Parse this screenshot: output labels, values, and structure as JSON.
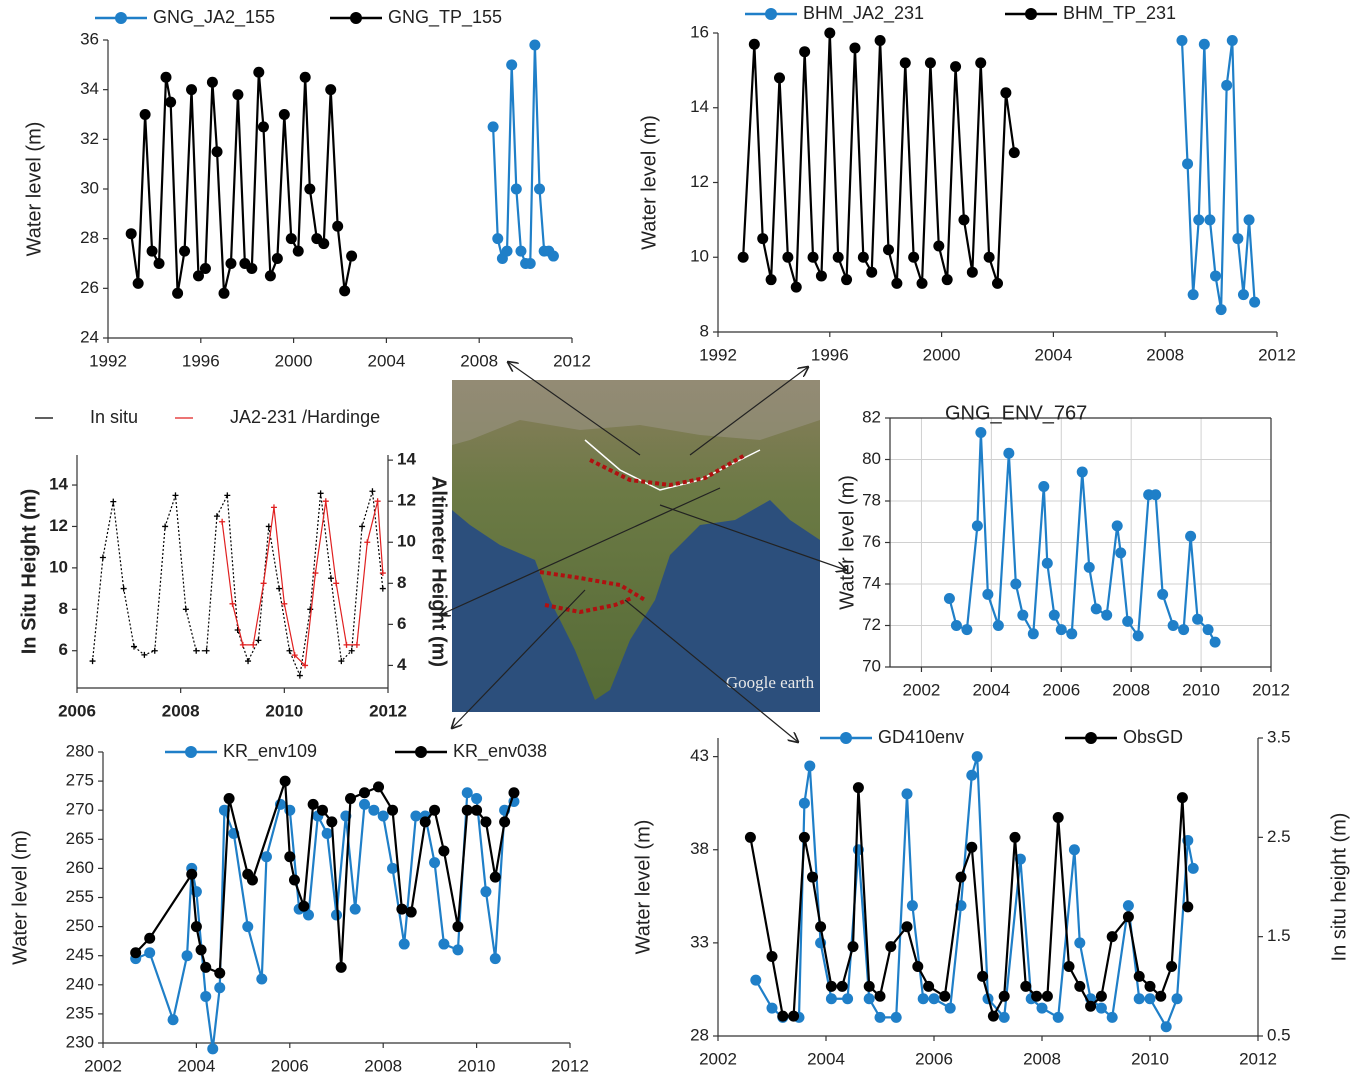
{
  "chart_data": [
    {
      "type": "line",
      "ylabel": "Water level (m)",
      "xlim": [
        1992,
        2012
      ],
      "xticks": [
        1992,
        1996,
        2000,
        2004,
        2008,
        2012
      ],
      "ylim": [
        24,
        36
      ],
      "yticks": [
        24,
        26,
        28,
        30,
        32,
        34,
        36
      ],
      "series": [
        {
          "name": "GNG_JA2_155",
          "color": "#1f7fc8",
          "marker": "circle",
          "x": [
            2008.6,
            2008.8,
            2009.0,
            2009.2,
            2009.4,
            2009.6,
            2009.8,
            2010.0,
            2010.2,
            2010.4,
            2010.6,
            2010.8,
            2011.0,
            2011.2
          ],
          "values": [
            32.5,
            28.0,
            27.2,
            27.5,
            35.0,
            30.0,
            27.5,
            27.0,
            27.0,
            35.8,
            30.0,
            27.5,
            27.5,
            27.3
          ]
        },
        {
          "name": "GNG_TP_155",
          "color": "#000000",
          "marker": "circle",
          "x": [
            1993.0,
            1993.3,
            1993.6,
            1993.9,
            1994.2,
            1994.5,
            1994.7,
            1995.0,
            1995.3,
            1995.6,
            1995.9,
            1996.2,
            1996.5,
            1996.7,
            1997.0,
            1997.3,
            1997.6,
            1997.9,
            1998.2,
            1998.5,
            1998.7,
            1999.0,
            1999.3,
            1999.6,
            1999.9,
            2000.2,
            2000.5,
            2000.7,
            2001.0,
            2001.3,
            2001.6,
            2001.9,
            2002.2,
            2002.5
          ],
          "values": [
            28.2,
            26.2,
            33.0,
            27.5,
            27.0,
            34.5,
            33.5,
            25.8,
            27.5,
            34.0,
            26.5,
            26.8,
            34.3,
            31.5,
            25.8,
            27.0,
            33.8,
            27.0,
            26.8,
            34.7,
            32.5,
            26.5,
            27.2,
            33.0,
            28.0,
            27.5,
            34.5,
            30.0,
            28.0,
            27.8,
            34.0,
            28.5,
            25.9,
            27.3
          ]
        }
      ]
    },
    {
      "type": "line",
      "ylabel": "Water level (m)",
      "xlim": [
        1992,
        2012
      ],
      "xticks": [
        1992,
        1996,
        2000,
        2004,
        2008,
        2012
      ],
      "ylim": [
        8,
        16
      ],
      "yticks": [
        8,
        10,
        12,
        14,
        16
      ],
      "series": [
        {
          "name": "BHM_JA2_231",
          "color": "#1f7fc8",
          "marker": "circle",
          "x": [
            2008.6,
            2008.8,
            2009.0,
            2009.2,
            2009.4,
            2009.6,
            2009.8,
            2010.0,
            2010.2,
            2010.4,
            2010.6,
            2010.8,
            2011.0,
            2011.2
          ],
          "values": [
            15.8,
            12.5,
            9.0,
            11.0,
            15.7,
            11.0,
            9.5,
            8.6,
            14.6,
            15.8,
            10.5,
            9.0,
            11.0,
            8.8
          ]
        },
        {
          "name": "BHM_TP_231",
          "color": "#000000",
          "marker": "circle",
          "x": [
            1992.9,
            1993.3,
            1993.6,
            1993.9,
            1994.2,
            1994.5,
            1994.8,
            1995.1,
            1995.4,
            1995.7,
            1996.0,
            1996.3,
            1996.6,
            1996.9,
            1997.2,
            1997.5,
            1997.8,
            1998.1,
            1998.4,
            1998.7,
            1999.0,
            1999.3,
            1999.6,
            1999.9,
            2000.2,
            2000.5,
            2000.8,
            2001.1,
            2001.4,
            2001.7,
            2002.0,
            2002.3,
            2002.6
          ],
          "values": [
            10.0,
            15.7,
            10.5,
            9.4,
            14.8,
            10.0,
            9.2,
            15.5,
            10.0,
            9.5,
            16.0,
            10.0,
            9.4,
            15.6,
            10.0,
            9.6,
            15.8,
            10.2,
            9.3,
            15.2,
            10.0,
            9.3,
            15.2,
            10.3,
            9.4,
            15.1,
            11.0,
            9.6,
            15.2,
            10.0,
            9.3,
            14.4,
            12.8
          ]
        }
      ]
    },
    {
      "type": "line",
      "ylabel": "In Situ Height (m)",
      "y2label": "Altimeter Height (m)",
      "xlim": [
        2006,
        2012
      ],
      "xticks": [
        2006,
        2008,
        2010,
        2012
      ],
      "ylim": [
        4.2,
        15.45
      ],
      "yticks": [
        6,
        8,
        10,
        12,
        14
      ],
      "y2lim": [
        2.9,
        14.25
      ],
      "y2ticks": [
        4,
        6,
        8,
        10,
        12,
        14
      ],
      "series": [
        {
          "name": "In situ",
          "color": "#000000",
          "marker": "plus",
          "line_style": "dotted",
          "x": [
            2006.3,
            2006.5,
            2006.7,
            2006.9,
            2007.1,
            2007.3,
            2007.5,
            2007.7,
            2007.9,
            2008.1,
            2008.3,
            2008.5,
            2008.7,
            2008.9,
            2009.1,
            2009.3,
            2009.5,
            2009.7,
            2009.9,
            2010.1,
            2010.3,
            2010.5,
            2010.7,
            2010.9,
            2011.1,
            2011.3,
            2011.5,
            2011.7,
            2011.9
          ],
          "values": [
            5.5,
            10.5,
            13.2,
            9.0,
            6.2,
            5.8,
            6.0,
            12.0,
            13.5,
            8.0,
            6.0,
            6.0,
            12.5,
            13.5,
            7.0,
            5.5,
            6.5,
            12.0,
            9.0,
            6.0,
            4.8,
            8.0,
            13.6,
            9.5,
            5.5,
            6.0,
            12.0,
            13.7,
            9.0
          ]
        },
        {
          "name": "JA2-231 /Hardinge",
          "color": "#e02020",
          "marker": "plus",
          "line_style": "solid",
          "axis": "y2",
          "x": [
            2008.8,
            2009.0,
            2009.2,
            2009.4,
            2009.6,
            2009.8,
            2010.0,
            2010.2,
            2010.4,
            2010.6,
            2010.8,
            2011.0,
            2011.2,
            2011.4,
            2011.6,
            2011.8,
            2011.9
          ],
          "values": [
            11.0,
            7.0,
            5.0,
            5.0,
            8.0,
            11.7,
            7.0,
            4.5,
            4.0,
            8.5,
            12.0,
            8.0,
            5.0,
            5.0,
            10.0,
            12.0,
            8.5
          ]
        }
      ]
    },
    {
      "type": "line",
      "title": "GNG_ENV_767",
      "ylabel": "Water level (m)",
      "grid": true,
      "xlim": [
        2001.1,
        2012
      ],
      "xticks": [
        2002,
        2004,
        2006,
        2008,
        2010,
        2012
      ],
      "ylim": [
        70,
        82
      ],
      "yticks": [
        70,
        72,
        74,
        76,
        78,
        80,
        82
      ],
      "series": [
        {
          "color": "#1f7fc8",
          "marker": "circle",
          "x": [
            2002.8,
            2003.0,
            2003.3,
            2003.6,
            2003.7,
            2003.9,
            2004.2,
            2004.5,
            2004.7,
            2004.9,
            2005.2,
            2005.5,
            2005.6,
            2005.8,
            2006.0,
            2006.3,
            2006.6,
            2006.8,
            2007.0,
            2007.3,
            2007.6,
            2007.7,
            2007.9,
            2008.2,
            2008.5,
            2008.7,
            2008.9,
            2009.2,
            2009.5,
            2009.7,
            2009.9,
            2010.2,
            2010.4
          ],
          "values": [
            73.3,
            72.0,
            71.8,
            76.8,
            81.3,
            73.5,
            72.0,
            80.3,
            74.0,
            72.5,
            71.6,
            78.7,
            75.0,
            72.5,
            71.8,
            71.6,
            79.4,
            74.8,
            72.8,
            72.5,
            76.8,
            75.5,
            72.2,
            71.5,
            78.3,
            78.3,
            73.5,
            72.0,
            71.8,
            76.3,
            72.3,
            71.8,
            71.2
          ]
        }
      ]
    },
    {
      "type": "line",
      "ylabel": "Water level (m)",
      "xlim": [
        2002,
        2012
      ],
      "xticks": [
        2002,
        2004,
        2006,
        2008,
        2010,
        2012
      ],
      "ylim": [
        230,
        280
      ],
      "yticks": [
        230,
        235,
        240,
        245,
        250,
        255,
        260,
        265,
        270,
        275,
        280
      ],
      "series": [
        {
          "name": "KR_env109",
          "color": "#1f7fc8",
          "marker": "circle",
          "x": [
            2002.7,
            2003.0,
            2003.5,
            2003.8,
            2003.9,
            2004.0,
            2004.2,
            2004.35,
            2004.5,
            2004.6,
            2004.8,
            2005.1,
            2005.4,
            2005.5,
            2005.8,
            2006.0,
            2006.2,
            2006.4,
            2006.6,
            2006.8,
            2007.0,
            2007.2,
            2007.4,
            2007.6,
            2007.8,
            2008.0,
            2008.2,
            2008.45,
            2008.7,
            2008.9,
            2009.1,
            2009.3,
            2009.6,
            2009.8,
            2010.0,
            2010.2,
            2010.4,
            2010.6,
            2010.8
          ],
          "values": [
            244.5,
            245.5,
            234,
            245,
            260,
            256,
            238,
            229,
            239.5,
            270,
            266,
            250,
            241,
            262,
            271,
            270,
            253,
            252,
            269,
            266,
            252,
            269,
            253,
            271,
            270,
            269,
            260,
            247,
            269,
            269,
            261,
            247,
            246,
            273,
            272,
            256,
            244.5,
            270,
            271.5
          ]
        },
        {
          "name": "KR_env038",
          "color": "#000000",
          "marker": "circle",
          "x": [
            2002.7,
            2003.0,
            2003.9,
            2004.0,
            2004.1,
            2004.2,
            2004.5,
            2004.7,
            2005.1,
            2005.2,
            2005.9,
            2006.0,
            2006.1,
            2006.3,
            2006.5,
            2006.7,
            2006.9,
            2007.1,
            2007.3,
            2007.6,
            2007.9,
            2008.2,
            2008.4,
            2008.6,
            2008.9,
            2009.1,
            2009.3,
            2009.6,
            2009.8,
            2010.0,
            2010.2,
            2010.4,
            2010.6,
            2010.8
          ],
          "values": [
            245.5,
            248,
            259,
            250,
            246,
            243,
            242,
            272,
            259,
            258,
            275,
            262,
            258,
            253.5,
            271,
            270,
            268,
            243,
            272,
            273,
            274,
            270,
            253,
            252.5,
            268,
            270,
            263,
            250,
            270,
            270,
            268,
            258.5,
            268,
            273
          ]
        }
      ]
    },
    {
      "type": "line",
      "ylabel": "Water level (m)",
      "y2label": "In situ height (m)",
      "xlim": [
        2002,
        2012
      ],
      "xticks": [
        2002,
        2004,
        2006,
        2008,
        2010,
        2012
      ],
      "ylim": [
        28,
        44
      ],
      "yticks": [
        28,
        33,
        38,
        43
      ],
      "y2lim": [
        0.5,
        3.5
      ],
      "y2ticks": [
        0.5,
        1.5,
        2.5,
        3.5
      ],
      "series": [
        {
          "name": "GD410env",
          "color": "#1f7fc8",
          "marker": "circle",
          "x": [
            2002.7,
            2003.0,
            2003.2,
            2003.5,
            2003.6,
            2003.7,
            2003.9,
            2004.1,
            2004.4,
            2004.6,
            2004.8,
            2005.0,
            2005.3,
            2005.5,
            2005.6,
            2005.8,
            2006.0,
            2006.3,
            2006.5,
            2006.7,
            2006.8,
            2007.0,
            2007.3,
            2007.6,
            2007.8,
            2008.0,
            2008.3,
            2008.6,
            2008.7,
            2008.9,
            2009.1,
            2009.3,
            2009.6,
            2009.8,
            2010.0,
            2010.3,
            2010.5,
            2010.7,
            2010.8
          ],
          "values": [
            31,
            29.5,
            29,
            29,
            40.5,
            42.5,
            33,
            30,
            30,
            38,
            30,
            29,
            29,
            41,
            35,
            30,
            30,
            29.5,
            35,
            42,
            43,
            30,
            29,
            37.5,
            30,
            29.5,
            29,
            38,
            33,
            30,
            29.5,
            29,
            35,
            30,
            30,
            28.5,
            30,
            38.5,
            37
          ]
        },
        {
          "name": "ObsGD",
          "color": "#000000",
          "marker": "circle",
          "axis": "y2",
          "x": [
            2002.6,
            2003.0,
            2003.2,
            2003.4,
            2003.6,
            2003.75,
            2003.9,
            2004.1,
            2004.3,
            2004.5,
            2004.6,
            2004.8,
            2005.0,
            2005.2,
            2005.5,
            2005.7,
            2005.9,
            2006.2,
            2006.5,
            2006.7,
            2006.9,
            2007.1,
            2007.3,
            2007.5,
            2007.7,
            2007.9,
            2008.1,
            2008.3,
            2008.5,
            2008.7,
            2008.9,
            2009.1,
            2009.3,
            2009.6,
            2009.8,
            2010.0,
            2010.2,
            2010.4,
            2010.6,
            2010.7
          ],
          "values": [
            2.5,
            1.3,
            0.7,
            0.7,
            2.5,
            2.1,
            1.6,
            1.0,
            1.0,
            1.4,
            3.0,
            1.0,
            0.9,
            1.4,
            1.6,
            1.2,
            1.0,
            0.9,
            2.1,
            2.4,
            1.1,
            0.7,
            0.9,
            2.5,
            1.0,
            0.9,
            0.9,
            2.7,
            1.2,
            1.0,
            0.8,
            0.9,
            1.5,
            1.7,
            1.1,
            1.0,
            0.9,
            1.2,
            2.9,
            1.8
          ]
        }
      ]
    }
  ],
  "map": {
    "label": "Google earth"
  }
}
